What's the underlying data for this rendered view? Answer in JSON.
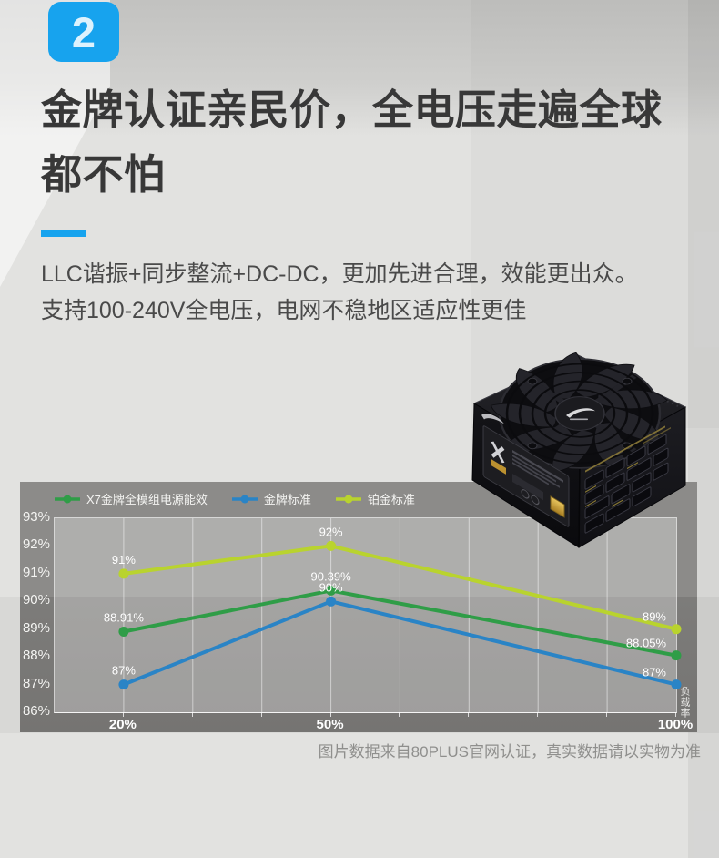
{
  "page": {
    "step_badge": "2",
    "title_line1": "金牌认证亲民价，全电压走遍全球",
    "title_line2": "都不怕",
    "body_line1": "LLC谐振+同步整流+DC-DC，更加先进合理，效能更出众。",
    "body_line2": "支持100-240V全电压，电网不稳地区适应性更佳",
    "footer_note": "图片数据来自80PLUS官网认证，真实数据请以实物为准",
    "accent_color": "#17a3ee"
  },
  "chart_data": {
    "type": "line",
    "legend_position": "top-left",
    "grid": "vertical",
    "x_axis_label": "负载率",
    "x_range": [
      10,
      100
    ],
    "x_grid_step": 10,
    "x_points": [
      20,
      50,
      100
    ],
    "x_tick_labels": [
      "20%",
      "50%",
      "100%"
    ],
    "ylim": [
      86,
      93
    ],
    "y_tick_step": 1,
    "y_tick_labels": [
      "93%",
      "92%",
      "91%",
      "90%",
      "89%",
      "88%",
      "87%",
      "86%"
    ],
    "series": [
      {
        "name": "X7金牌全模组电源能效",
        "color": "#2f9d47",
        "values": [
          88.91,
          90.39,
          88.05
        ],
        "point_labels": [
          "88.91%",
          "90.39%",
          "88.05%"
        ]
      },
      {
        "name": "金牌标准",
        "color": "#2a84c6",
        "values": [
          87,
          90,
          87
        ],
        "point_labels": [
          "87%",
          "90%",
          "87%"
        ]
      },
      {
        "name": "铂金标准",
        "color": "#b9d32e",
        "values": [
          91,
          92,
          89
        ],
        "point_labels": [
          "91%",
          "92%",
          "89%"
        ]
      }
    ]
  }
}
